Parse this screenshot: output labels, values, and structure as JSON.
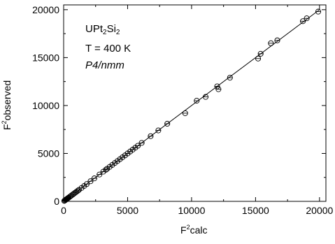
{
  "chart_data": {
    "type": "scatter",
    "title": "",
    "annotations": {
      "compound_base": "UPt",
      "compound_sub1": "2",
      "compound_mid": "Si",
      "compound_sub2": "2",
      "temperature": "T = 400 K",
      "space_group": "P4/nmm"
    },
    "xlabel": {
      "sup": "2",
      "pre": "F",
      "post": "calc"
    },
    "ylabel": {
      "sup": "2",
      "pre": "F",
      "post": "observed"
    },
    "xlim": [
      0,
      20500
    ],
    "ylim": [
      0,
      20500
    ],
    "xticks": [
      0,
      5000,
      10000,
      15000,
      20000
    ],
    "yticks": [
      0,
      5000,
      10000,
      15000,
      20000
    ],
    "xtick_labels": [
      "0",
      "5000",
      "10000",
      "15000",
      "20000"
    ],
    "ytick_labels": [
      "0",
      "5000",
      "10000",
      "15000",
      "20000"
    ],
    "fit_line": {
      "x": [
        0,
        20000
      ],
      "y": [
        0,
        20000
      ]
    },
    "x": [
      50,
      100,
      150,
      200,
      250,
      300,
      350,
      400,
      500,
      600,
      700,
      800,
      900,
      1000,
      1100,
      1200,
      1400,
      1600,
      1800,
      2100,
      2400,
      2800,
      3100,
      3300,
      3400,
      3600,
      3800,
      4000,
      4200,
      4400,
      4600,
      4800,
      5000,
      5200,
      5400,
      5600,
      5800,
      6100,
      6800,
      7400,
      8100,
      9500,
      10400,
      11100,
      12000,
      12100,
      13000,
      15200,
      15400,
      16200,
      16700,
      18700,
      19000,
      19900
    ],
    "y": [
      50,
      100,
      150,
      200,
      250,
      300,
      350,
      400,
      500,
      600,
      700,
      800,
      900,
      1000,
      1100,
      1200,
      1400,
      1600,
      1800,
      2100,
      2400,
      2800,
      3100,
      3300,
      3400,
      3600,
      3800,
      4000,
      4200,
      4400,
      4600,
      4800,
      5000,
      5200,
      5400,
      5600,
      5800,
      6100,
      6800,
      7400,
      8100,
      9200,
      10500,
      10900,
      12000,
      11700,
      12900,
      14900,
      15400,
      16500,
      16800,
      18800,
      19100,
      19800
    ],
    "marker": "circle-with-bar",
    "grid": false,
    "legend": false
  }
}
